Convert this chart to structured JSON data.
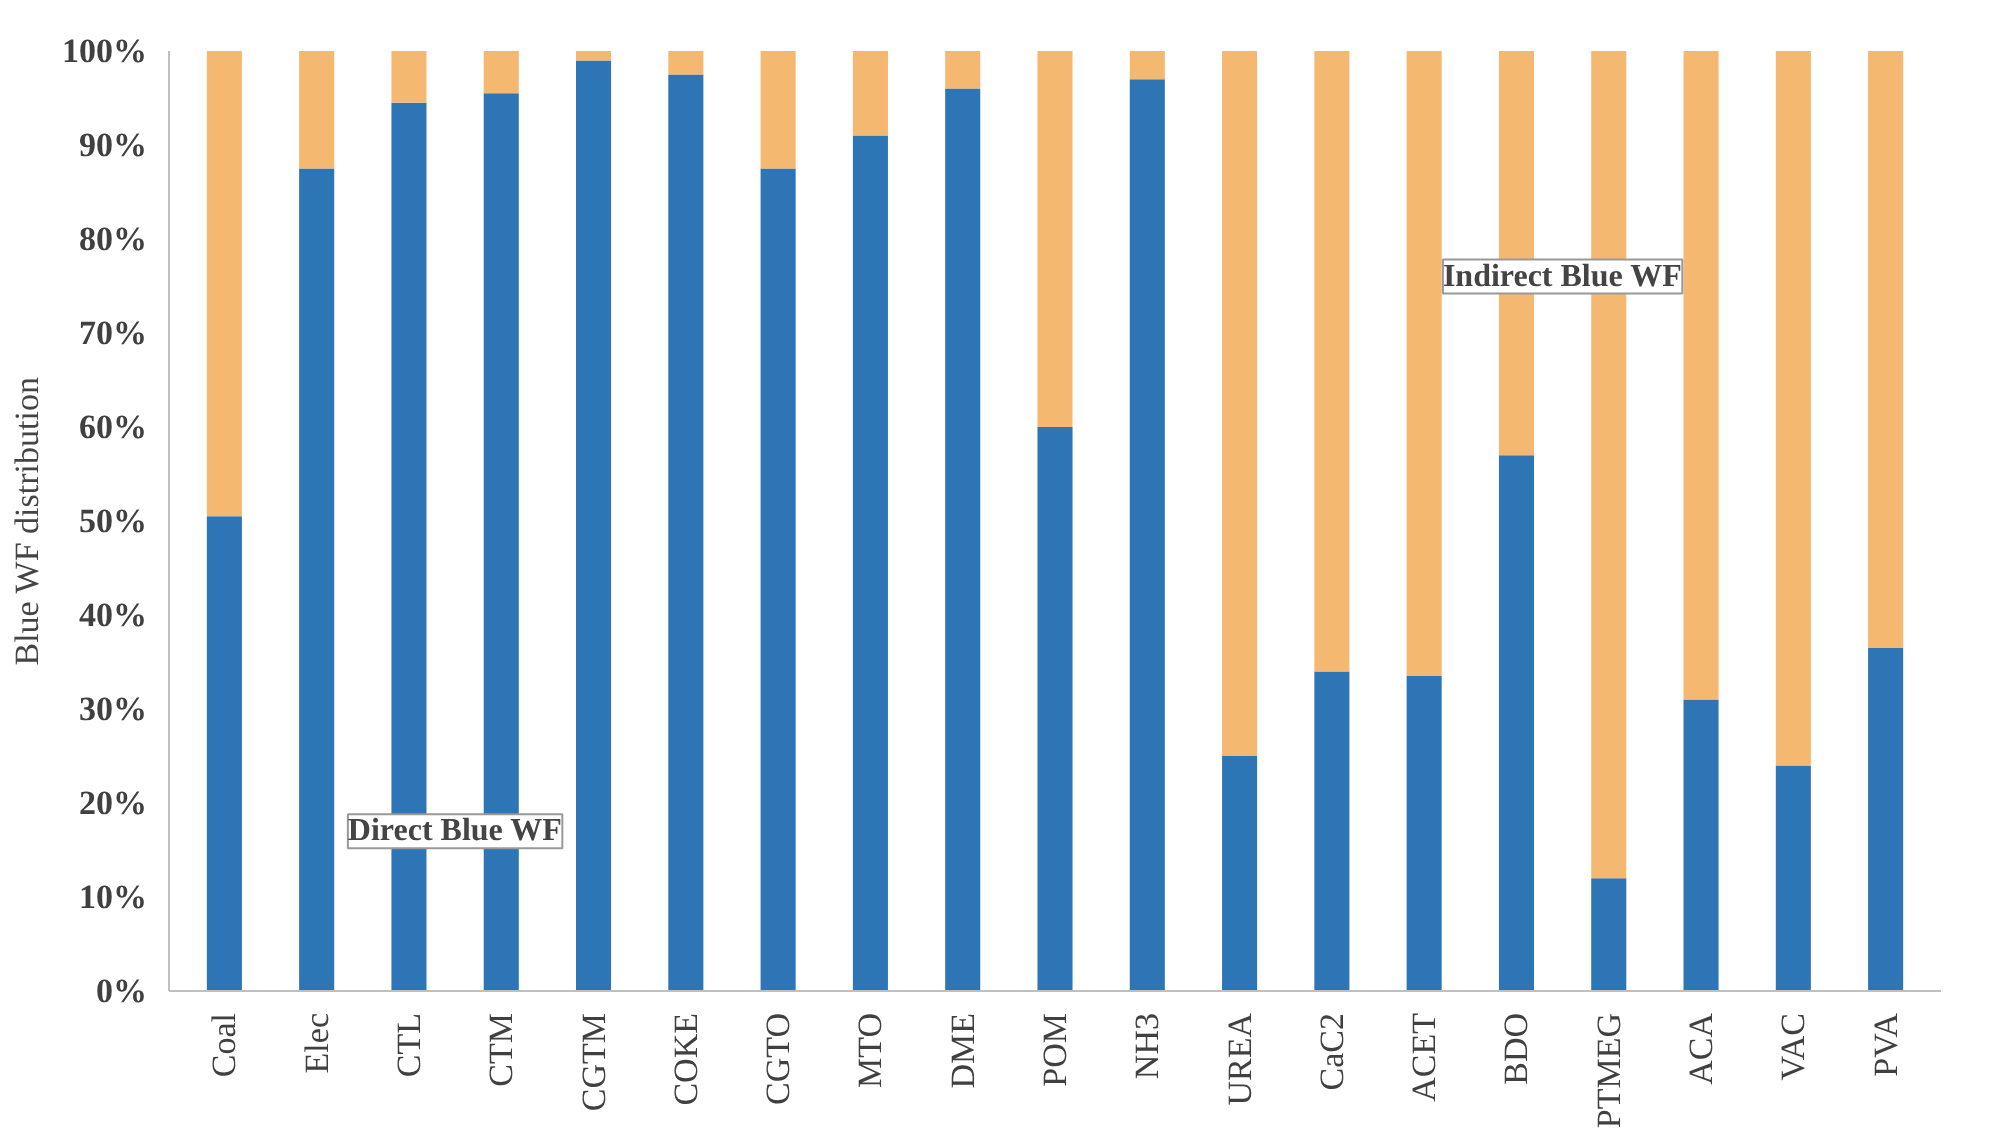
{
  "chart_data": {
    "type": "bar",
    "stacked": true,
    "ylabel": "Blue WF distribution",
    "categories": [
      "Coal",
      "Elec",
      "CTL",
      "CTM",
      "CGTM",
      "COKE",
      "CGTO",
      "MTO",
      "DME",
      "POM",
      "NH3",
      "UREA",
      "CaC2",
      "ACET",
      "BDO",
      "PTMEG",
      "ACA",
      "VAC",
      "PVA"
    ],
    "series": [
      {
        "name": "Direct Blue WF",
        "color": "#2e75b6",
        "values": [
          50.5,
          87.5,
          94.5,
          95.5,
          99,
          97.5,
          87.5,
          91,
          96,
          60,
          97,
          25,
          34,
          33.5,
          57,
          12,
          31,
          24,
          36.5
        ]
      },
      {
        "name": "Indirect Blue WF",
        "color": "#f4b870",
        "values": [
          49.5,
          12.5,
          5.5,
          4.5,
          1,
          2.5,
          12.5,
          9,
          4,
          40,
          3,
          75,
          66,
          66.5,
          43,
          88,
          69,
          76,
          63.5
        ]
      }
    ],
    "ylim": [
      0,
      100
    ],
    "yticks": [
      {
        "value": 0,
        "label": "0%"
      },
      {
        "value": 10,
        "label": "10%"
      },
      {
        "value": 20,
        "label": "20%"
      },
      {
        "value": 30,
        "label": "30%"
      },
      {
        "value": 40,
        "label": "40%"
      },
      {
        "value": 50,
        "label": "50%"
      },
      {
        "value": 60,
        "label": "60%"
      },
      {
        "value": 70,
        "label": "70%"
      },
      {
        "value": 80,
        "label": "80%"
      },
      {
        "value": 90,
        "label": "90%"
      },
      {
        "value": 100,
        "label": "100%"
      }
    ],
    "grid": false,
    "legend": false
  }
}
